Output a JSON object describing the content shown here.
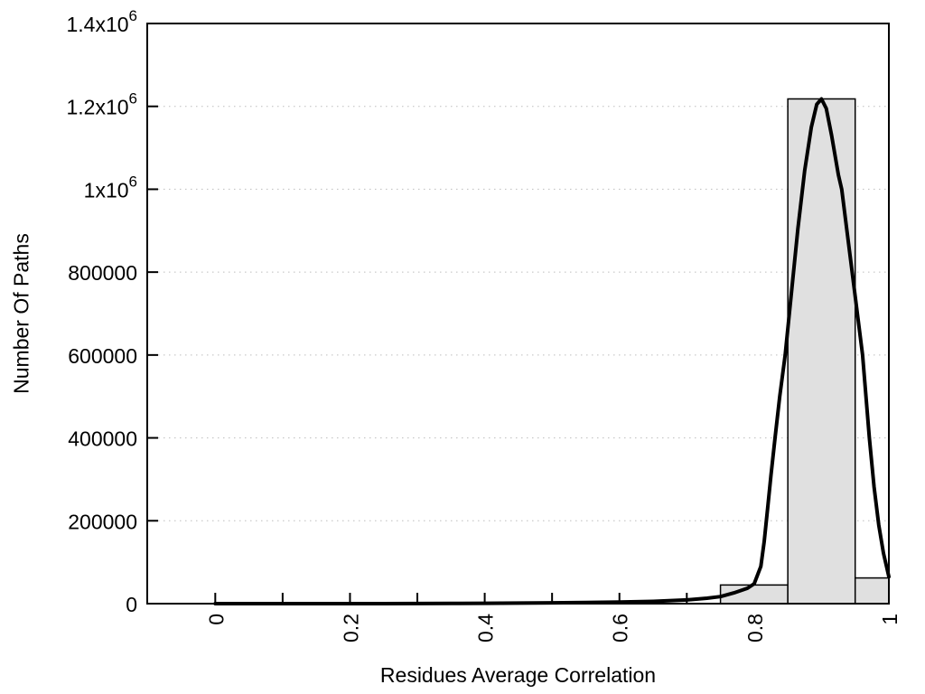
{
  "chart_data": {
    "type": "histogram",
    "title": "",
    "xlabel": "Residues Average Correlation",
    "ylabel": "Number Of Paths",
    "xlim": [
      -0.101,
      1.0
    ],
    "ylim": [
      0,
      1400000
    ],
    "x_ticks": {
      "major_values": [
        0,
        0.2,
        0.4,
        0.6,
        0.8,
        1
      ],
      "major_labels": [
        "0",
        "0.2",
        "0.4",
        "0.6",
        "0.8",
        "1"
      ],
      "minor_values": [
        0.1,
        0.3,
        0.5,
        0.7,
        0.9
      ],
      "label_rotation_deg": -90
    },
    "y_ticks": {
      "values": [
        0,
        200000,
        400000,
        600000,
        800000,
        1000000,
        1200000,
        1400000
      ],
      "labels": [
        "0",
        "200000",
        "400000",
        "600000",
        "800000",
        "1x10^6",
        "1.2x10^6",
        "1.4x10^6"
      ]
    },
    "grid": {
      "horizontal_dotted": true,
      "color": "#bdbdbd"
    },
    "bars": [
      {
        "bin_start": 0.75,
        "bin_end": 0.85,
        "count": 45000
      },
      {
        "bin_start": 0.85,
        "bin_end": 0.95,
        "count": 1218000
      },
      {
        "bin_start": 0.95,
        "bin_end": 1.0,
        "count": 62000
      }
    ],
    "fit_curve": {
      "name": "bell-shaped-fit",
      "peak_x": 0.9,
      "peak_y": 1218000,
      "points": [
        [
          0.0,
          0
        ],
        [
          0.05,
          0
        ],
        [
          0.1,
          0
        ],
        [
          0.15,
          0
        ],
        [
          0.2,
          0
        ],
        [
          0.25,
          0
        ],
        [
          0.3,
          200
        ],
        [
          0.35,
          500
        ],
        [
          0.4,
          900
        ],
        [
          0.45,
          1300
        ],
        [
          0.5,
          1900
        ],
        [
          0.55,
          2600
        ],
        [
          0.6,
          3600
        ],
        [
          0.65,
          5500
        ],
        [
          0.7,
          9000
        ],
        [
          0.73,
          13000
        ],
        [
          0.75,
          17000
        ],
        [
          0.77,
          26000
        ],
        [
          0.79,
          37000
        ],
        [
          0.8,
          48000
        ],
        [
          0.81,
          90000
        ],
        [
          0.815,
          150000
        ],
        [
          0.82,
          230000
        ],
        [
          0.825,
          310000
        ],
        [
          0.831,
          400000
        ],
        [
          0.838,
          500000
        ],
        [
          0.846,
          600000
        ],
        [
          0.855,
          745000
        ],
        [
          0.865,
          905000
        ],
        [
          0.875,
          1045000
        ],
        [
          0.885,
          1150000
        ],
        [
          0.893,
          1205000
        ],
        [
          0.9,
          1218000
        ],
        [
          0.907,
          1195000
        ],
        [
          0.915,
          1130000
        ],
        [
          0.925,
          1035000
        ],
        [
          0.93,
          1000000
        ],
        [
          0.94,
          870000
        ],
        [
          0.95,
          742000
        ],
        [
          0.961,
          600000
        ],
        [
          0.971,
          400000
        ],
        [
          0.978,
          282000
        ],
        [
          0.985,
          190000
        ],
        [
          0.992,
          122000
        ],
        [
          1.0,
          65000
        ]
      ]
    },
    "style": {
      "bar_fill": "#e0e0e0",
      "bar_border": "#000000",
      "curve_color": "#000000",
      "frame_color": "#000000",
      "text_color": "#000000"
    }
  }
}
